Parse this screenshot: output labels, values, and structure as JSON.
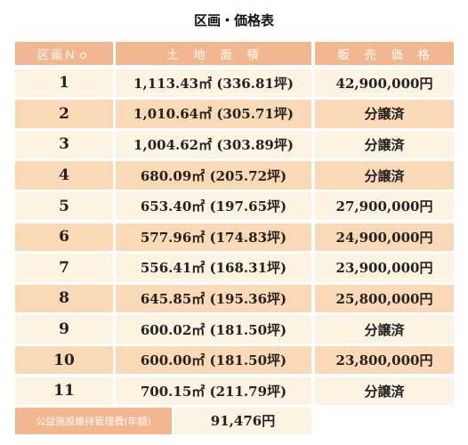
{
  "header": {
    "title": "区画・価格表"
  },
  "table": {
    "columns": [
      "区画Ｎｏ",
      "土　地　面　積",
      "販　売　価　格"
    ],
    "rows": [
      [
        "1",
        "1,113.43㎡ (336.81坪)",
        "42,900,000円"
      ],
      [
        "2",
        "1,010.64㎡ (305.71坪)",
        "分譲済"
      ],
      [
        "3",
        "1,004.62㎡ (303.89坪)",
        "分譲済"
      ],
      [
        "4",
        "680.09㎡ (205.72坪)",
        "分譲済"
      ],
      [
        "5",
        "653.40㎡ (197.65坪)",
        "27,900,000円"
      ],
      [
        "6",
        "577.96㎡ (174.83坪)",
        "24,900,000円"
      ],
      [
        "7",
        "556.41㎡ (168.31坪)",
        "23,900,000円"
      ],
      [
        "8",
        "645.85㎡ (195.36坪)",
        "25,800,000円"
      ],
      [
        "9",
        "600.02㎡ (181.50坪)",
        "分譲済"
      ],
      [
        "10",
        "600.00㎡ (181.50坪)",
        "23,800,000円"
      ],
      [
        "11",
        "700.15㎡ (211.79坪)",
        "分譲済"
      ]
    ]
  },
  "footer": {
    "label": "公益施設維持管理費(年額)",
    "value": "91,476円"
  }
}
